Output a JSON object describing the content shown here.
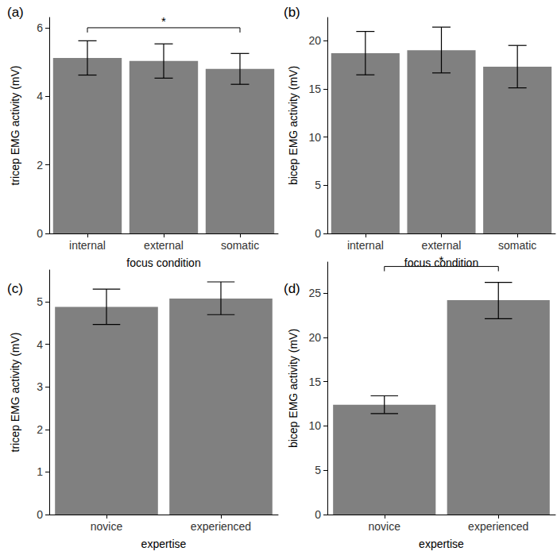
{
  "chart_data": [
    {
      "type": "bar",
      "title": "(a)",
      "x_label": "focus condition",
      "y_label": "tricep EMG activity (mV)",
      "categories": [
        "internal",
        "external",
        "somatic"
      ],
      "values": [
        5.12,
        5.03,
        4.8
      ],
      "errors": [
        [
          4.62,
          5.62
        ],
        [
          4.53,
          5.53
        ],
        [
          4.35,
          5.25
        ]
      ],
      "color": "#808080",
      "ylim": [
        0,
        6.3
      ],
      "yticks": [
        0,
        2,
        4,
        6
      ],
      "grid": false,
      "annotations": [
        {
          "text": "*",
          "from": "internal",
          "to": "somatic",
          "y": 6.0
        }
      ]
    },
    {
      "type": "bar",
      "title": "(b)",
      "x_label": "focus condition",
      "y_label": "bicep EMG activity (mV)",
      "categories": [
        "internal",
        "external",
        "somatic"
      ],
      "values": [
        18.7,
        19.0,
        17.3
      ],
      "errors": [
        [
          16.45,
          20.95
        ],
        [
          16.65,
          21.4
        ],
        [
          15.1,
          19.5
        ]
      ],
      "color": "#808080",
      "ylim": [
        0,
        22.4
      ],
      "yticks": [
        0,
        5,
        10,
        15,
        20
      ],
      "grid": false,
      "annotations": []
    },
    {
      "type": "bar",
      "title": "(c)",
      "x_label": "expertise",
      "y_label": "tricep EMG activity (mV)",
      "categories": [
        "novice",
        "experienced"
      ],
      "values": [
        4.88,
        5.08
      ],
      "errors": [
        [
          4.47,
          5.3
        ],
        [
          4.7,
          5.47
        ]
      ],
      "color": "#808080",
      "ylim": [
        0,
        5.75
      ],
      "yticks": [
        0,
        1,
        2,
        3,
        4,
        5
      ],
      "grid": false,
      "annotations": []
    },
    {
      "type": "bar",
      "title": "(d)",
      "x_label": "expertise",
      "y_label": "bicep EMG activity (mV)",
      "categories": [
        "novice",
        "experienced"
      ],
      "values": [
        12.4,
        24.2
      ],
      "errors": [
        [
          11.4,
          13.4
        ],
        [
          22.1,
          26.2
        ]
      ],
      "color": "#808080",
      "ylim": [
        0,
        28.5
      ],
      "yticks": [
        0,
        5,
        10,
        15,
        20,
        25
      ],
      "grid": false,
      "annotations": [
        {
          "text": "*",
          "from": "novice",
          "to": "experienced",
          "y": 28.0
        }
      ]
    }
  ]
}
